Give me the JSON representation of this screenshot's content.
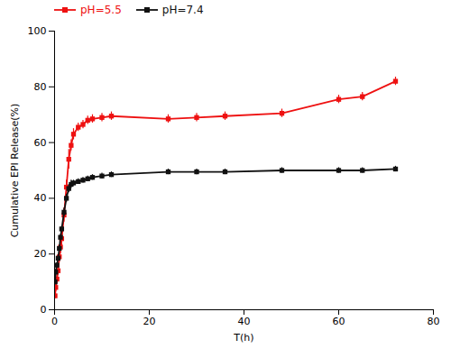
{
  "chart_data": {
    "type": "line",
    "xlabel": "T(h)",
    "ylabel": "Cumulative EPI Release(%)",
    "x": [
      0.1,
      0.25,
      0.5,
      0.75,
      1.0,
      1.25,
      1.5,
      2.0,
      2.5,
      3.0,
      3.5,
      4.0,
      5.0,
      6.0,
      7.0,
      8.0,
      10.0,
      12.0,
      24.0,
      30.0,
      36.0,
      48.0,
      60.0,
      65.0,
      72.0
    ],
    "xlim": [
      0,
      80
    ],
    "ylim": [
      0,
      100
    ],
    "xticks": [
      0,
      20,
      40,
      60,
      80
    ],
    "yticks": [
      0,
      20,
      40,
      60,
      80,
      100
    ],
    "grid": false,
    "legend": "upper left",
    "series": [
      {
        "name": "pH=5.5",
        "color": "#ee1111",
        "marker": "square",
        "line_style": "solid",
        "values": [
          5.0,
          8.0,
          11.0,
          14.0,
          19.0,
          22.5,
          25.5,
          34.0,
          44.0,
          54.0,
          59.0,
          63.0,
          65.5,
          66.5,
          68.0,
          68.5,
          69.0,
          69.5,
          68.5,
          69.0,
          69.5,
          70.5,
          75.5,
          76.5,
          82.0
        ],
        "yerr": [
          1.0,
          1.5,
          1.5,
          1.5,
          2.0,
          2.5,
          2.5,
          2.5,
          2.5,
          3.5,
          2.0,
          2.0,
          1.5,
          1.5,
          1.5,
          1.5,
          1.5,
          1.5,
          1.5,
          1.5,
          1.5,
          1.5,
          1.5,
          1.5,
          1.5
        ]
      },
      {
        "name": "pH=7.4",
        "color": "#111111",
        "marker": "square",
        "line_style": "solid",
        "values": [
          10.0,
          13.5,
          16.0,
          18.5,
          22.0,
          26.0,
          29.0,
          35.0,
          40.0,
          43.5,
          45.0,
          45.5,
          46.0,
          46.5,
          47.0,
          47.5,
          48.0,
          48.5,
          49.5,
          49.5,
          49.5,
          50.0,
          50.0,
          50.0,
          50.5
        ],
        "yerr": [
          1.0,
          1.0,
          1.0,
          1.0,
          1.0,
          1.0,
          1.0,
          1.5,
          1.5,
          1.5,
          1.5,
          1.0,
          1.0,
          1.0,
          1.0,
          1.0,
          1.0,
          1.0,
          1.0,
          1.0,
          1.0,
          1.0,
          1.0,
          1.0,
          1.0
        ]
      }
    ]
  }
}
